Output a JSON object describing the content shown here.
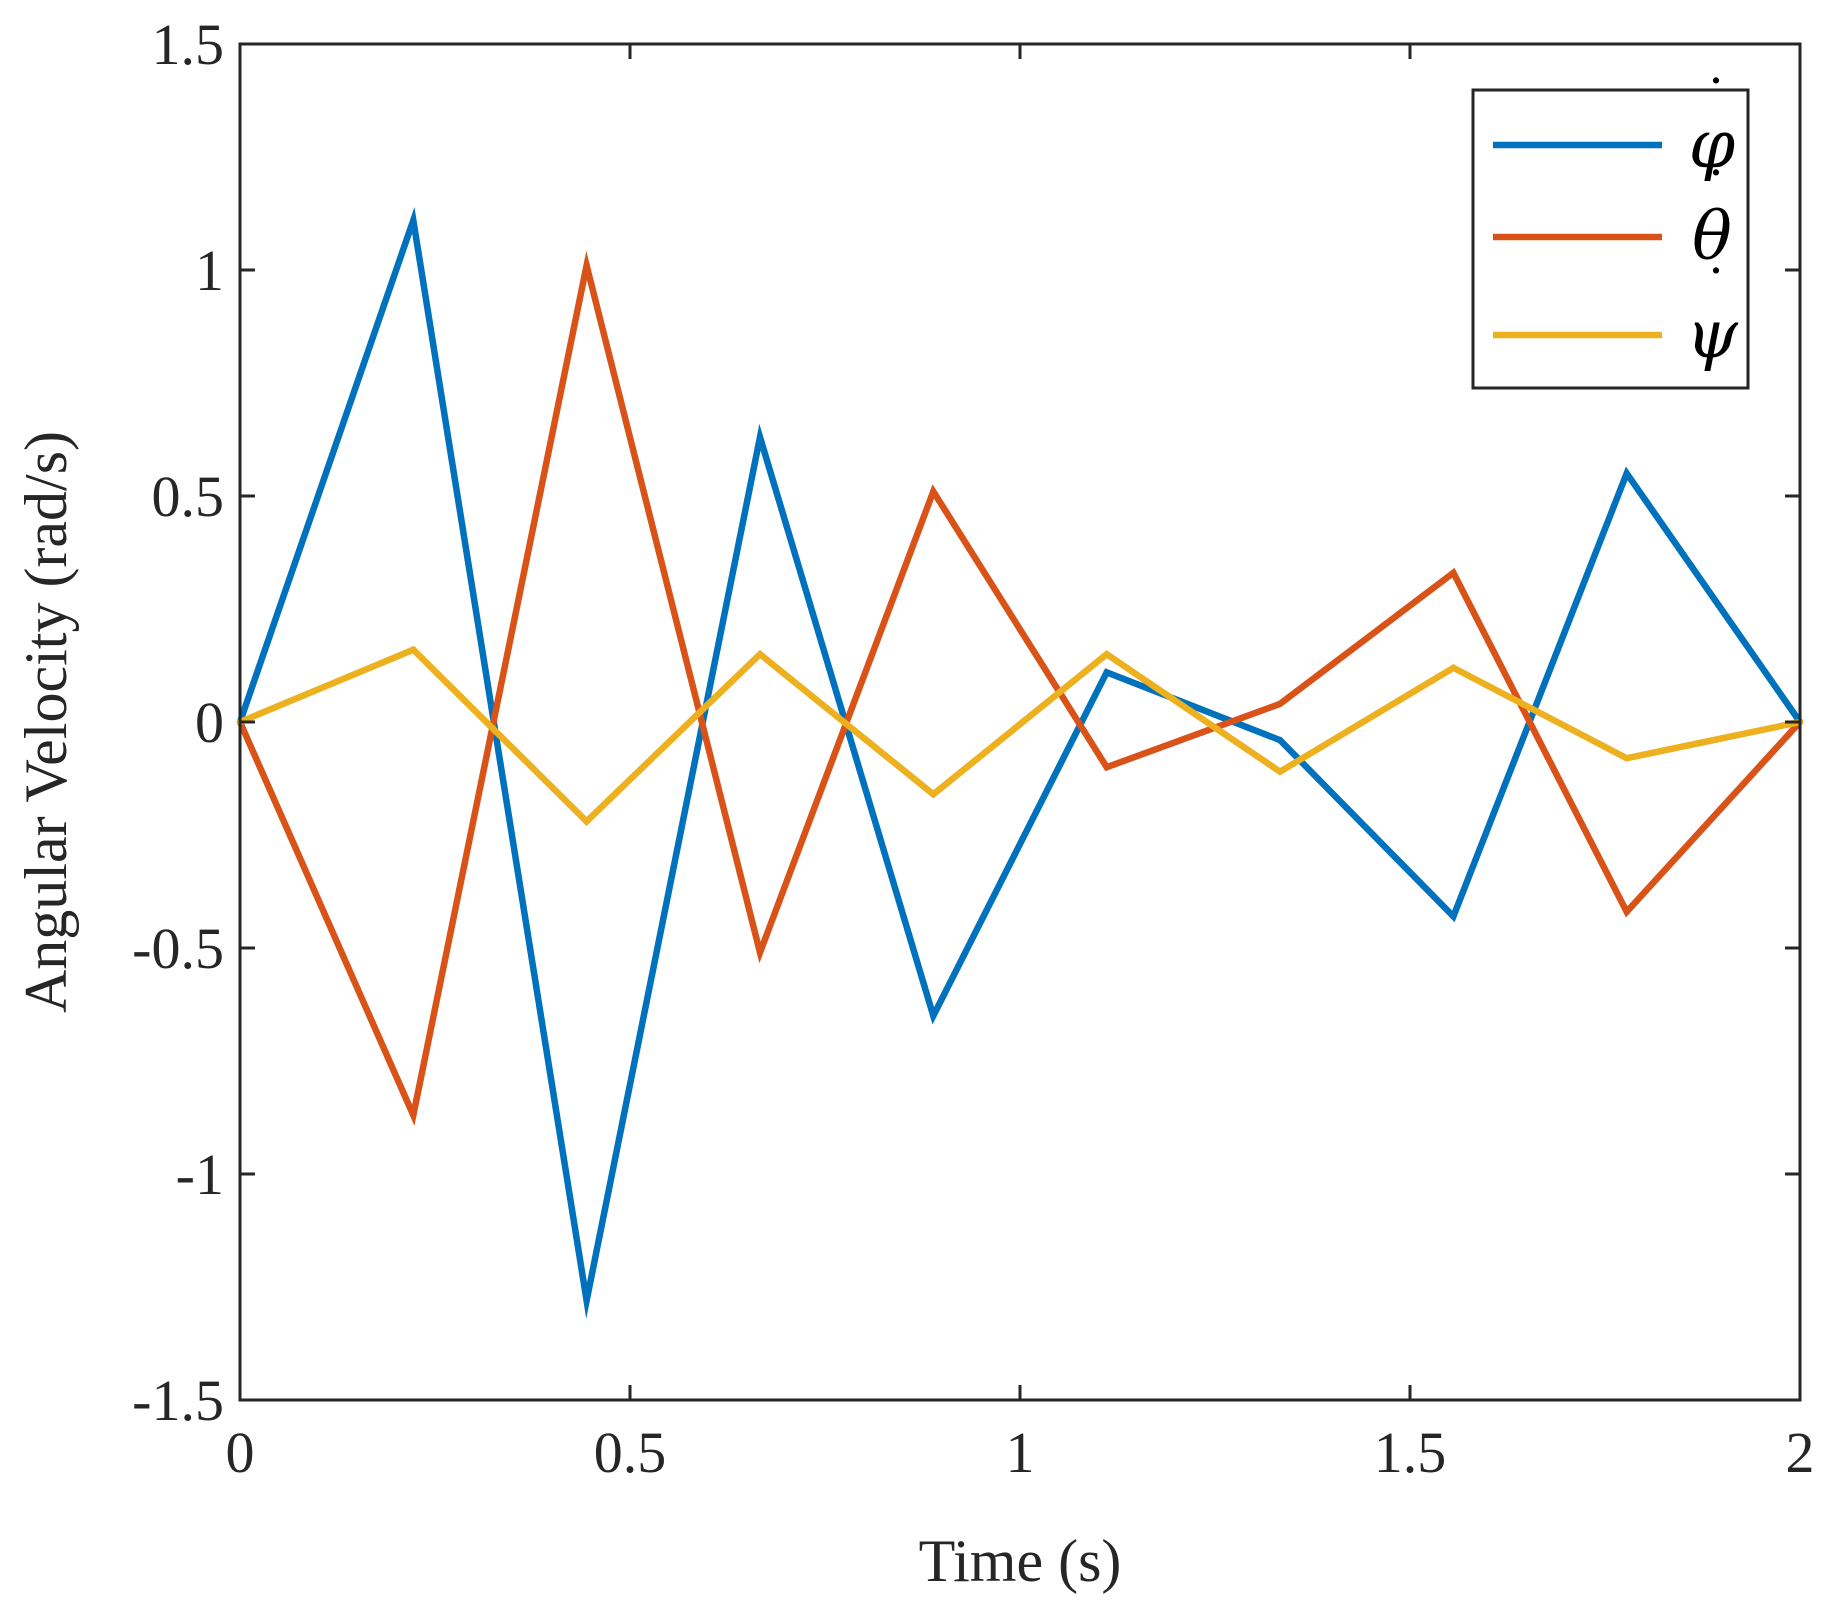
{
  "chart_data": {
    "type": "line",
    "title": "",
    "xlabel": "Time (s)",
    "ylabel": "Angular Velocity (rad/s)",
    "xlim": [
      0,
      2
    ],
    "ylim": [
      -1.5,
      1.5
    ],
    "xticks": [
      0,
      0.5,
      1,
      1.5,
      2
    ],
    "xtick_labels": [
      "0",
      "0.5",
      "1",
      "1.5",
      "2"
    ],
    "yticks": [
      -1.5,
      -1,
      -0.5,
      0,
      0.5,
      1,
      1.5
    ],
    "ytick_labels": [
      "-1.5",
      "-1",
      "-0.5",
      "0",
      "0.5",
      "1",
      "1.5"
    ],
    "grid": false,
    "legend_position": "top-right",
    "x": [
      0,
      0.2222,
      0.4444,
      0.6667,
      0.8889,
      1.1111,
      1.3333,
      1.5556,
      1.7778,
      2.0
    ],
    "series": [
      {
        "name": "φ",
        "label_base": "φ",
        "label_accent": "˙",
        "color": "#0072BD",
        "values": [
          0,
          1.11,
          -1.28,
          0.63,
          -0.65,
          0.11,
          -0.04,
          -0.43,
          0.55,
          0
        ]
      },
      {
        "name": "θ",
        "label_base": "θ",
        "label_accent": "˙",
        "color": "#D95319",
        "values": [
          0,
          -0.87,
          1.01,
          -0.51,
          0.51,
          -0.1,
          0.04,
          0.33,
          -0.42,
          0
        ]
      },
      {
        "name": "ψ",
        "label_base": "ψ",
        "label_accent": "˙",
        "color": "#EDB120",
        "values": [
          0,
          0.16,
          -0.22,
          0.15,
          -0.16,
          0.15,
          -0.11,
          0.12,
          -0.08,
          0
        ]
      }
    ]
  }
}
